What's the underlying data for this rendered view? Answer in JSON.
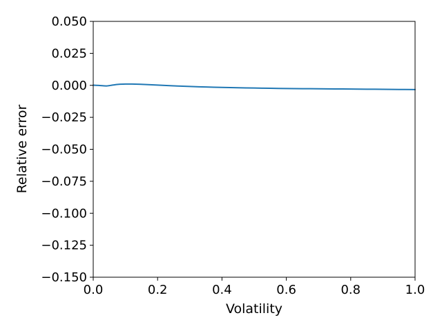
{
  "chart_data": {
    "type": "line",
    "title": "",
    "xlabel": "Volatility",
    "ylabel": "Relative error",
    "xlim": [
      0.0,
      1.0
    ],
    "ylim": [
      -0.15,
      0.05
    ],
    "x_ticks": [
      0.0,
      0.2,
      0.4,
      0.6,
      0.8,
      1.0
    ],
    "x_tick_labels": [
      "0.0",
      "0.2",
      "0.4",
      "0.6",
      "0.8",
      "1.0"
    ],
    "y_ticks": [
      0.05,
      0.025,
      0.0,
      -0.025,
      -0.05,
      -0.075,
      -0.1,
      -0.125,
      -0.15
    ],
    "y_tick_labels": [
      "0.050",
      "0.025",
      "0.000",
      "−0.025",
      "−0.050",
      "−0.075",
      "−0.100",
      "−0.125",
      "−0.150"
    ],
    "grid": false,
    "series": [
      {
        "color": "#1f77b4",
        "x": [
          0.0,
          0.02,
          0.04,
          0.06,
          0.08,
          0.1,
          0.12,
          0.14,
          0.16,
          0.2,
          0.25,
          0.3,
          0.35,
          0.4,
          0.45,
          0.5,
          0.55,
          0.6,
          0.65,
          0.7,
          0.75,
          0.8,
          0.85,
          0.9,
          0.95,
          1.0
        ],
        "y": [
          0.0001,
          -0.0001,
          -0.0005,
          0.0002,
          0.0008,
          0.001,
          0.001,
          0.0009,
          0.0007,
          0.0002,
          -0.0004,
          -0.0009,
          -0.0013,
          -0.0016,
          -0.0019,
          -0.0021,
          -0.0023,
          -0.0025,
          -0.0026,
          -0.0027,
          -0.0028,
          -0.0029,
          -0.003,
          -0.0031,
          -0.0032,
          -0.0033
        ]
      }
    ]
  }
}
